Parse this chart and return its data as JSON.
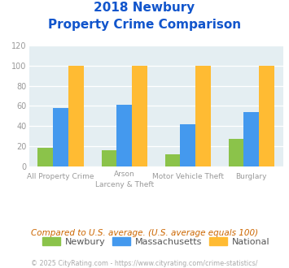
{
  "title_line1": "2018 Newbury",
  "title_line2": "Property Crime Comparison",
  "cat_labels_top": [
    "All Property Crime",
    "Arson",
    "Motor Vehicle Theft",
    "Burglary"
  ],
  "cat_labels_bot": [
    "",
    "Larceny & Theft",
    "",
    ""
  ],
  "newbury": [
    18,
    16,
    12,
    27
  ],
  "massachusetts": [
    58,
    61,
    42,
    54
  ],
  "national": [
    100,
    100,
    100,
    100
  ],
  "colors": {
    "newbury": "#8bc34a",
    "massachusetts": "#4499ee",
    "national": "#ffbb33",
    "background": "#e4eef2",
    "title": "#1155cc",
    "axis_text": "#999999",
    "note_text": "#cc6600",
    "footer_text": "#aaaaaa"
  },
  "ylim": [
    0,
    120
  ],
  "yticks": [
    0,
    20,
    40,
    60,
    80,
    100,
    120
  ],
  "legend_labels": [
    "Newbury",
    "Massachusetts",
    "National"
  ],
  "note": "Compared to U.S. average. (U.S. average equals 100)",
  "footer": "© 2025 CityRating.com - https://www.cityrating.com/crime-statistics/",
  "bar_width": 0.24
}
